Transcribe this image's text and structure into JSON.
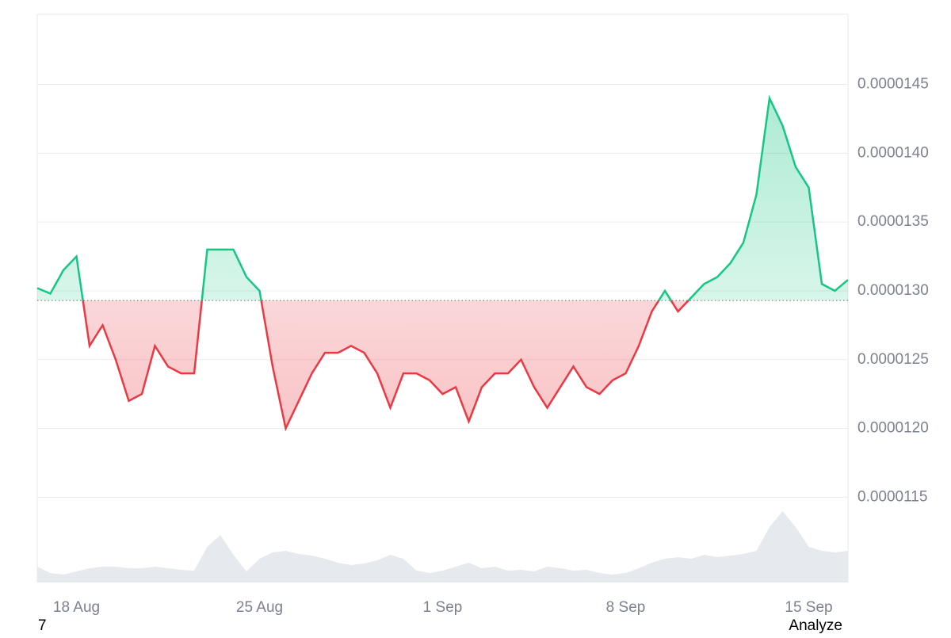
{
  "chart_data": {
    "type": "baseline-line",
    "categories": [
      null,
      null,
      null,
      "18 Aug",
      null,
      null,
      null,
      null,
      null,
      null,
      null,
      null,
      null,
      null,
      null,
      null,
      null,
      "25 Aug",
      null,
      null,
      null,
      null,
      null,
      null,
      null,
      null,
      null,
      null,
      null,
      null,
      null,
      "1 Sep",
      null,
      null,
      null,
      null,
      null,
      null,
      null,
      null,
      null,
      null,
      null,
      null,
      null,
      "8 Sep",
      null,
      null,
      null,
      null,
      null,
      null,
      null,
      null,
      null,
      null,
      null,
      null,
      null,
      "15 Sep",
      null,
      null,
      null
    ],
    "values": [
      1.302e-05,
      1.298e-05,
      1.315e-05,
      1.325e-05,
      1.26e-05,
      1.275e-05,
      1.25e-05,
      1.22e-05,
      1.225e-05,
      1.26e-05,
      1.245e-05,
      1.24e-05,
      1.24e-05,
      1.33e-05,
      1.33e-05,
      1.33e-05,
      1.31e-05,
      1.3e-05,
      1.245e-05,
      1.2e-05,
      1.22e-05,
      1.24e-05,
      1.255e-05,
      1.255e-05,
      1.26e-05,
      1.255e-05,
      1.24e-05,
      1.215e-05,
      1.24e-05,
      1.24e-05,
      1.235e-05,
      1.225e-05,
      1.23e-05,
      1.205e-05,
      1.23e-05,
      1.24e-05,
      1.24e-05,
      1.25e-05,
      1.23e-05,
      1.215e-05,
      1.23e-05,
      1.245e-05,
      1.23e-05,
      1.225e-05,
      1.235e-05,
      1.24e-05,
      1.26e-05,
      1.285e-05,
      1.3e-05,
      1.285e-05,
      1.295e-05,
      1.305e-05,
      1.31e-05,
      1.32e-05,
      1.335e-05,
      1.37e-05,
      1.44e-05,
      1.42e-05,
      1.39e-05,
      1.375e-05,
      1.305e-05,
      1.3e-05,
      1.308e-05
    ],
    "baseline": 1.293e-05,
    "up_color": "#16c784",
    "down_color": "#ea3943",
    "volume": {
      "values": [
        20,
        12,
        10,
        14,
        18,
        20,
        20,
        18,
        18,
        20,
        18,
        16,
        15,
        45,
        60,
        35,
        14,
        30,
        38,
        40,
        36,
        34,
        30,
        25,
        22,
        24,
        28,
        35,
        30,
        15,
        12,
        15,
        20,
        25,
        18,
        20,
        15,
        16,
        14,
        20,
        18,
        15,
        16,
        12,
        10,
        12,
        18,
        25,
        30,
        32,
        30,
        35,
        32,
        34,
        36,
        40,
        70,
        90,
        70,
        45,
        40,
        38,
        40
      ],
      "color": "#e6e9ed",
      "lim": [
        0,
        100
      ]
    },
    "ylim": [
      1.088e-05,
      1.501e-05
    ],
    "yticks": [
      {
        "value": 1.15e-05,
        "label": "0.0000115"
      },
      {
        "value": 1.2e-05,
        "label": "0.0000120"
      },
      {
        "value": 1.25e-05,
        "label": "0.0000125"
      },
      {
        "value": 1.3e-05,
        "label": "0.0000130"
      },
      {
        "value": 1.35e-05,
        "label": "0.0000135"
      },
      {
        "value": 1.4e-05,
        "label": "0.0000140"
      },
      {
        "value": 1.45e-05,
        "label": "0.0000145"
      }
    ],
    "grid": true
  },
  "footer": {
    "left": "7",
    "right": "Analyze"
  }
}
